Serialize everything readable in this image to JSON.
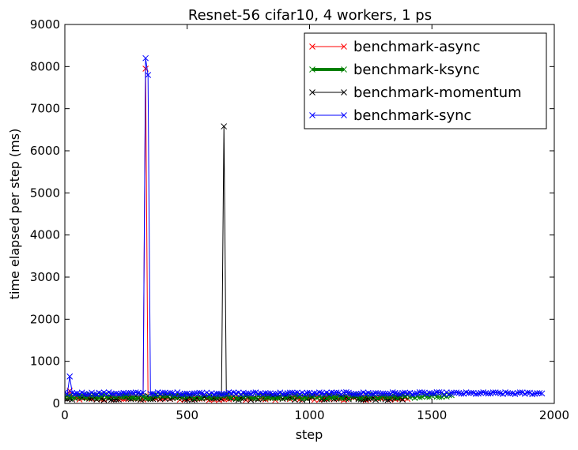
{
  "chart_data": {
    "type": "line",
    "title": "Resnet-56 cifar10, 4 workers, 1 ps",
    "xlabel": "step",
    "ylabel": "time elapsed per step (ms)",
    "xlim": [
      0,
      2000
    ],
    "ylim": [
      0,
      9000
    ],
    "xticks": [
      0,
      500,
      1000,
      1500,
      2000
    ],
    "yticks": [
      0,
      1000,
      2000,
      3000,
      4000,
      5000,
      6000,
      7000,
      8000,
      9000
    ],
    "grid": false,
    "legend_position": "top-right",
    "series": [
      {
        "name": "benchmark-async",
        "color": "#ff0000",
        "marker": "x",
        "x_start": 0,
        "x_end": 1400,
        "x_step": 10,
        "base": 120,
        "noise": 40,
        "spikes": [
          {
            "x": 330,
            "y": 7950
          },
          {
            "x": 20,
            "y": 300
          }
        ]
      },
      {
        "name": "benchmark-ksync",
        "color": "#008000",
        "marker": "x",
        "x_start": 0,
        "x_end": 1580,
        "x_step": 10,
        "base": 160,
        "noise": 40,
        "spikes": []
      },
      {
        "name": "benchmark-momentum",
        "color": "#000000",
        "marker": "x",
        "x_start": 0,
        "x_end": 1390,
        "x_step": 10,
        "base": 130,
        "noise": 50,
        "spikes": [
          {
            "x": 650,
            "y": 6580
          }
        ]
      },
      {
        "name": "benchmark-sync",
        "color": "#0000ff",
        "marker": "x",
        "x_start": 0,
        "x_end": 1950,
        "x_step": 10,
        "base": 240,
        "noise": 25,
        "spikes": [
          {
            "x": 20,
            "y": 640
          },
          {
            "x": 330,
            "y": 8200
          },
          {
            "x": 340,
            "y": 7800
          }
        ]
      }
    ]
  }
}
